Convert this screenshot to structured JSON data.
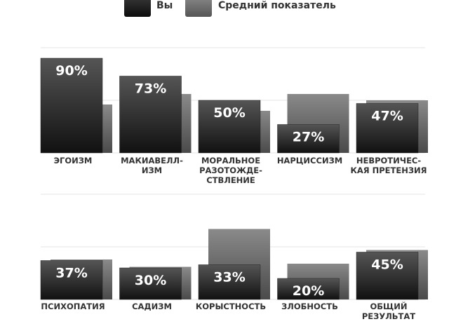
{
  "legend": {
    "you_label": "Вы",
    "avg_label": "Средний показатель"
  },
  "colors": {
    "you_top": "#555555",
    "you_bottom": "#111111",
    "avg_top": "#8a8a8a",
    "avg_bottom": "#4a4a4a",
    "grid": "#e6e6e6",
    "value_text": "#ffffff",
    "label_text": "#333333"
  },
  "chart_data": [
    {
      "type": "bar",
      "categories": [
        [
          "ЭГОИЗМ"
        ],
        [
          "МАКИАВЕЛЛ-",
          "ИЗМ"
        ],
        [
          "МОРАЛЬНОЕ",
          "РАЗОТОЖДЕ-",
          "СТВЛЕНИЕ"
        ],
        [
          "НАРЦИССИЗМ"
        ],
        [
          "НЕВРОТИЧЕС-",
          "КАЯ ПРЕТЕНЗИЯ"
        ]
      ],
      "series": [
        {
          "name": "Вы",
          "values": [
            90,
            73,
            50,
            27,
            47
          ],
          "labels": [
            "90%",
            "73%",
            "50%",
            "27%",
            "47%"
          ]
        },
        {
          "name": "Средний показатель",
          "values": [
            46,
            56,
            40,
            56,
            50
          ]
        }
      ],
      "ylim": [
        0,
        100
      ],
      "grid": true
    },
    {
      "type": "bar",
      "categories": [
        [
          "ПСИХОПАТИЯ"
        ],
        [
          "САДИЗМ"
        ],
        [
          "КОРЫСТНОСТЬ"
        ],
        [
          "ЗЛОБНОСТЬ"
        ],
        [
          "ОБЩИЙ",
          "РЕЗУЛЬТАТ"
        ]
      ],
      "series": [
        {
          "name": "Вы",
          "values": [
            37,
            30,
            33,
            20,
            45
          ],
          "labels": [
            "37%",
            "30%",
            "33%",
            "20%",
            "45%"
          ]
        },
        {
          "name": "Средний показатель",
          "values": [
            38,
            31,
            67,
            34,
            47
          ]
        }
      ],
      "ylim": [
        0,
        100
      ],
      "grid": true
    }
  ]
}
